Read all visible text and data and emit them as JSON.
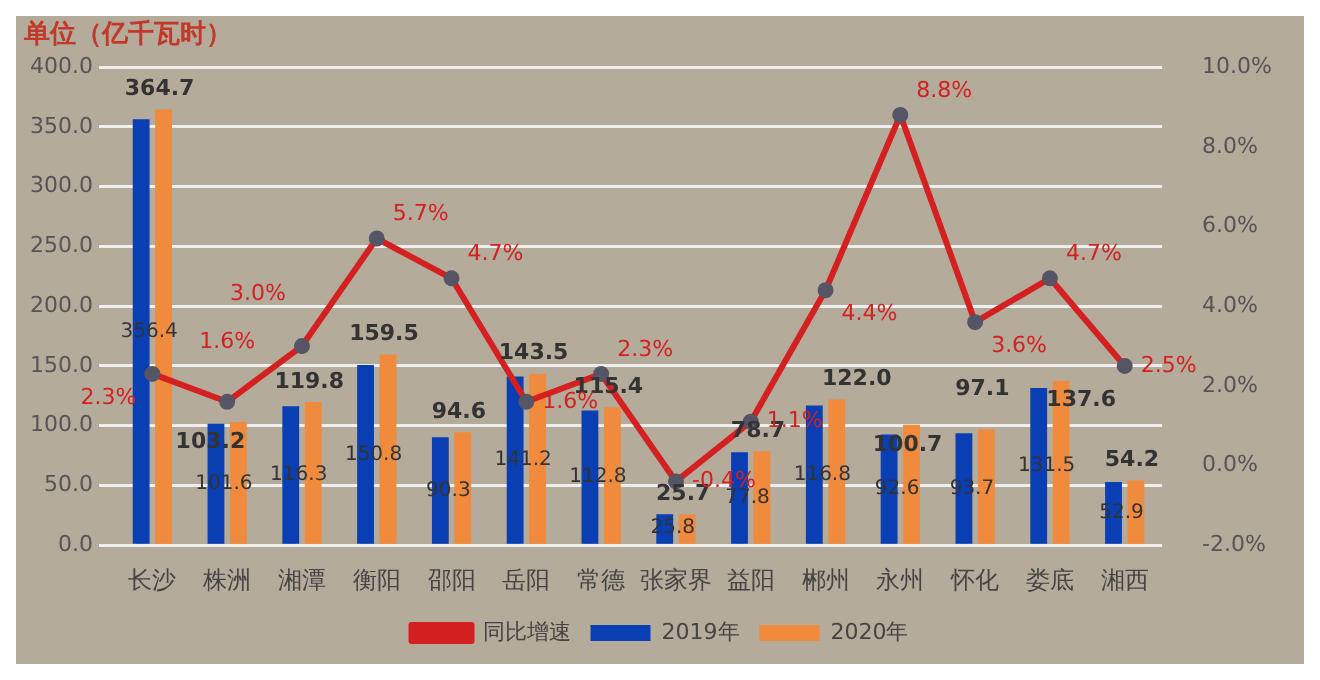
{
  "chart_data": {
    "type": "bar",
    "title": "单位（亿千瓦时）",
    "categories": [
      "长沙",
      "株洲",
      "湘潭",
      "衡阳",
      "邵阳",
      "岳阳",
      "常德",
      "张家界",
      "益阳",
      "郴州",
      "永州",
      "怀化",
      "娄底",
      "湘西"
    ],
    "series": [
      {
        "name": "2019年",
        "color": "#0a3fb4",
        "values": [
          356.4,
          101.6,
          116.3,
          150.8,
          90.3,
          141.2,
          112.8,
          25.8,
          77.8,
          116.8,
          92.6,
          93.7,
          131.5,
          52.9
        ],
        "value_labels": [
          "356.4",
          "101.6",
          "116.3",
          "150.8",
          "90.3",
          "141.2",
          "112.8",
          "25.8",
          "77.8",
          "116.8",
          "92.6",
          "93.7",
          "131.5",
          "52.9"
        ]
      },
      {
        "name": "2020年",
        "color": "#f08a3c",
        "values": [
          364.7,
          103.2,
          119.8,
          159.5,
          94.6,
          143.5,
          115.4,
          25.7,
          78.7,
          122.0,
          100.7,
          97.1,
          137.6,
          54.2
        ],
        "value_labels": [
          "364.7",
          "103.2",
          "119.8",
          "159.5",
          "94.6",
          "143.5",
          "115.4",
          "25.7",
          "78.7",
          "122.0",
          "100.7",
          "97.1",
          "137.6",
          "54.2"
        ]
      },
      {
        "name": "同比增速",
        "type": "line",
        "axis": "y2",
        "color": "#d42020",
        "marker": "circle",
        "values": [
          2.3,
          1.6,
          3.0,
          5.7,
          4.7,
          1.6,
          2.3,
          -0.4,
          1.1,
          4.4,
          8.8,
          3.6,
          4.7,
          2.5
        ],
        "value_labels": [
          "2.3%",
          "1.6%",
          "3.0%",
          "5.7%",
          "4.7%",
          "1.6%",
          "2.3%",
          "-0.4%",
          "1.1%",
          "4.4%",
          "8.8%",
          "3.6%",
          "4.7%",
          "2.5%"
        ]
      }
    ],
    "ylim": [
      0,
      400
    ],
    "yticks": [
      {
        "value": 0,
        "label": "0.0"
      },
      {
        "value": 50,
        "label": "50.0"
      },
      {
        "value": 100,
        "label": "100.0"
      },
      {
        "value": 150,
        "label": "150.0"
      },
      {
        "value": 200,
        "label": "200.0"
      },
      {
        "value": 250,
        "label": "250.0"
      },
      {
        "value": 300,
        "label": "300.0"
      },
      {
        "value": 350,
        "label": "350.0"
      },
      {
        "value": 400,
        "label": "400.0"
      }
    ],
    "y2lim": [
      -2,
      10
    ],
    "y2ticks": [
      {
        "value": -2,
        "label": "-2.0%"
      },
      {
        "value": 0,
        "label": "0.0%"
      },
      {
        "value": 2,
        "label": "2.0%"
      },
      {
        "value": 4,
        "label": "4.0%"
      },
      {
        "value": 6,
        "label": "6.0%"
      },
      {
        "value": 8,
        "label": "8.0%"
      },
      {
        "value": 10,
        "label": "10.0%"
      }
    ],
    "grid": "y",
    "legend": "bottom"
  }
}
